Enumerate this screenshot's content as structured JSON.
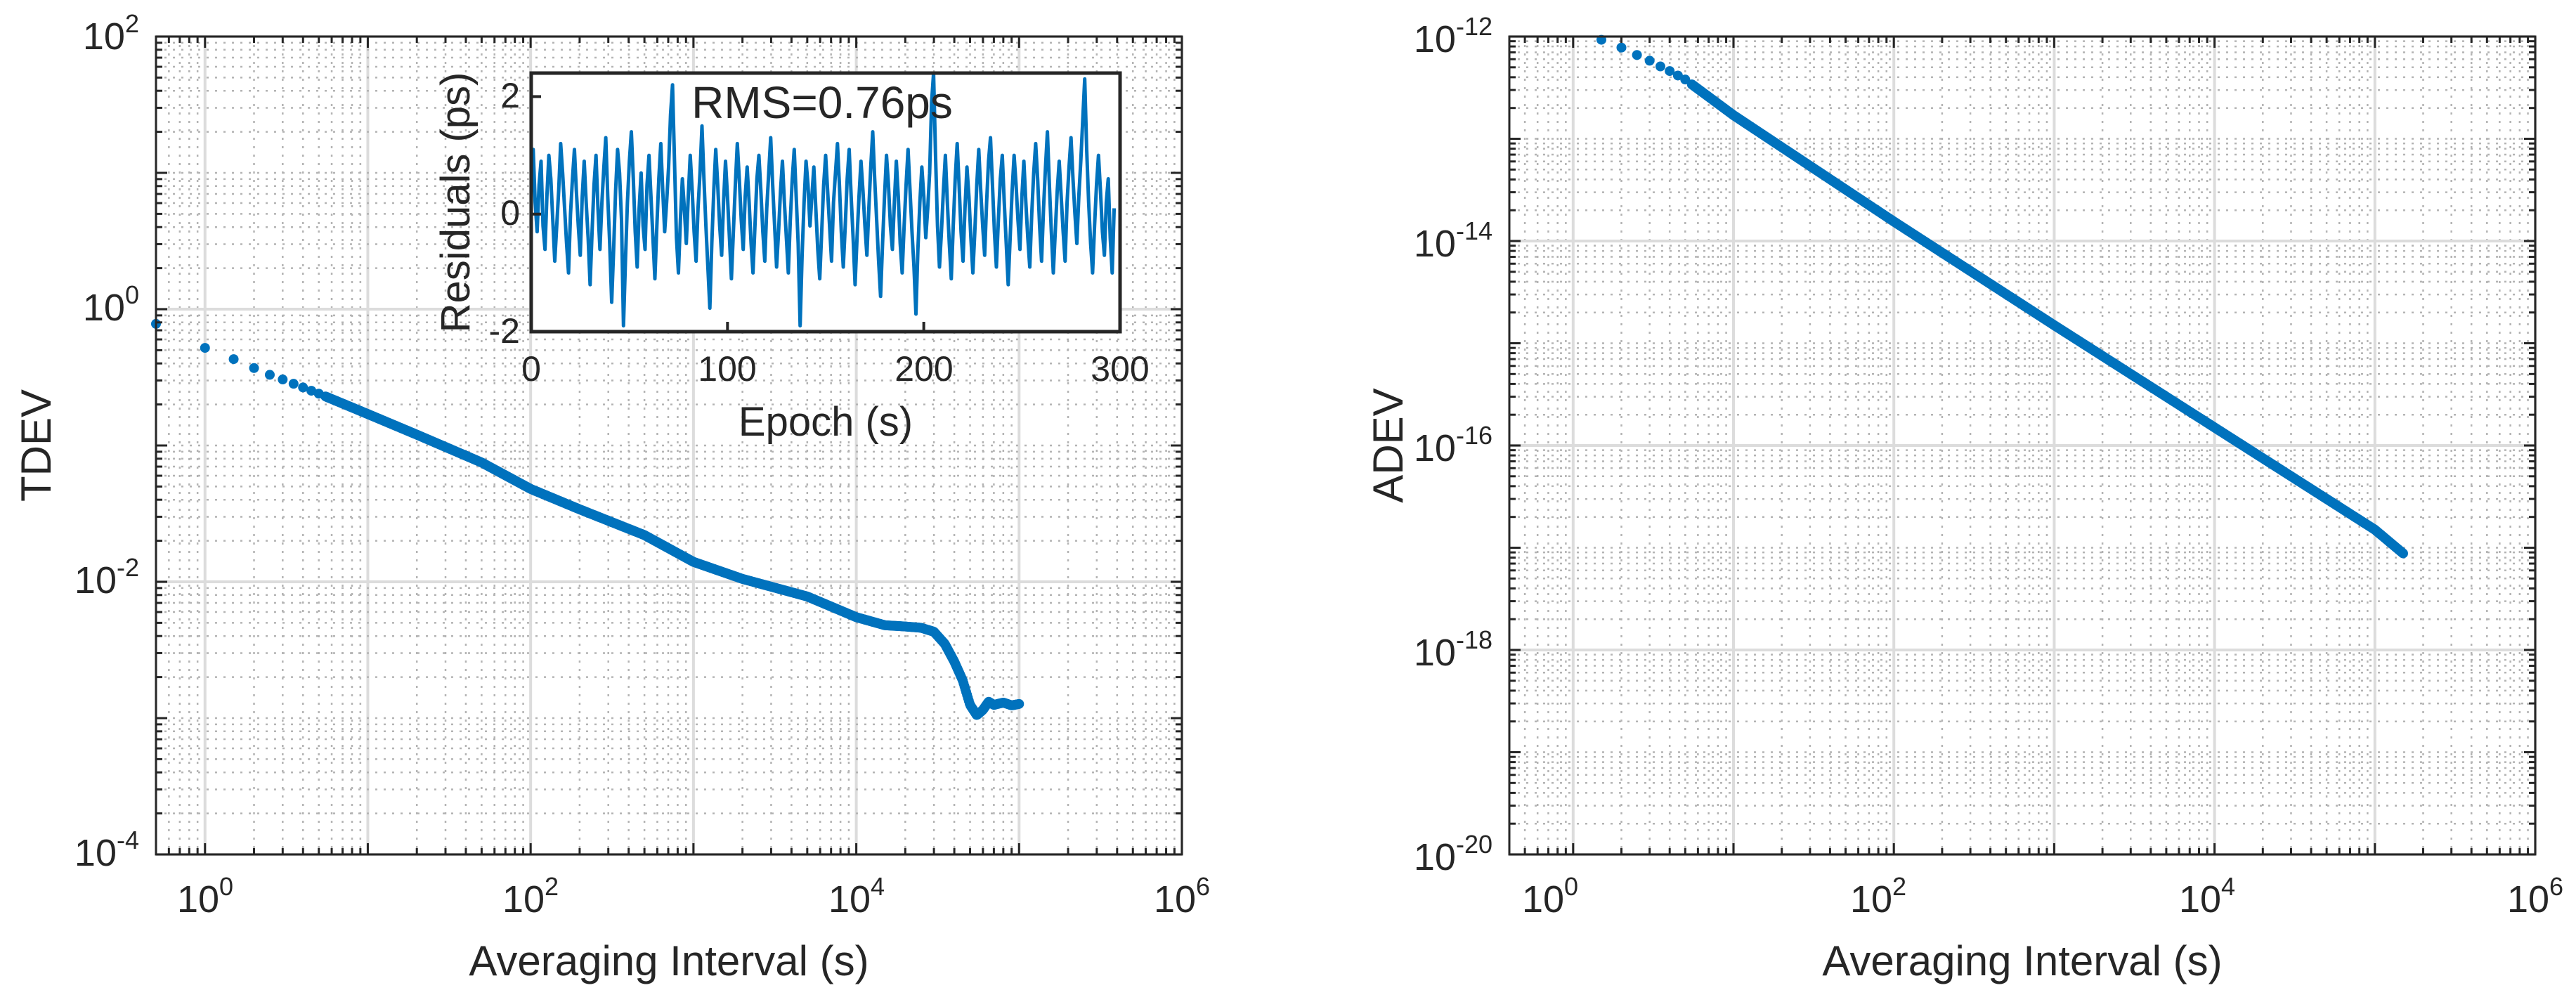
{
  "chart_data": [
    {
      "type": "scatter",
      "xscale": "log",
      "yscale": "log",
      "xlabel": "Averaging Interval (s)",
      "ylabel": "TDEV",
      "xlim": [
        0.5,
        1000000
      ],
      "ylim": [
        0.0001,
        100
      ],
      "grid": true,
      "minor_grid": true,
      "x_ticks": [
        {
          "base": "10",
          "exp": "0"
        },
        {
          "base": "10",
          "exp": "2"
        },
        {
          "base": "10",
          "exp": "4"
        },
        {
          "base": "10",
          "exp": "6"
        }
      ],
      "y_ticks": [
        {
          "base": "10",
          "exp": "-4"
        },
        {
          "base": "10",
          "exp": "-2"
        },
        {
          "base": "10",
          "exp": "0"
        },
        {
          "base": "10",
          "exp": "2"
        }
      ],
      "series": [
        {
          "name": "TDEV",
          "color": "#0072bd",
          "points": [
            [
              0.5,
              0.78
            ],
            [
              1,
              0.52
            ],
            [
              1.5,
              0.43
            ],
            [
              2,
              0.37
            ],
            [
              2.5,
              0.33
            ],
            [
              3,
              0.305
            ],
            [
              5,
              0.24
            ],
            [
              10,
              0.17
            ],
            [
              20,
              0.12
            ],
            [
              50,
              0.075
            ],
            [
              100,
              0.048
            ],
            [
              200,
              0.034
            ],
            [
              500,
              0.022
            ],
            [
              1000,
              0.014
            ],
            [
              2000,
              0.0105
            ],
            [
              5000,
              0.0078
            ],
            [
              10000,
              0.0055
            ],
            [
              15000,
              0.0048
            ],
            [
              20000,
              0.0047
            ],
            [
              25000,
              0.0046
            ],
            [
              30000,
              0.0043
            ],
            [
              35000,
              0.0035
            ],
            [
              40000,
              0.0026
            ],
            [
              45000,
              0.0019
            ],
            [
              50000,
              0.00125
            ],
            [
              55000,
              0.00105
            ],
            [
              60000,
              0.00115
            ],
            [
              65000,
              0.00132
            ],
            [
              70000,
              0.00125
            ],
            [
              80000,
              0.0013
            ],
            [
              90000,
              0.00124
            ],
            [
              100000,
              0.00127
            ]
          ]
        }
      ]
    },
    {
      "type": "line",
      "role": "inset",
      "xlabel": "Epoch (s)",
      "ylabel": "Residuals (ps)",
      "xlim": [
        0,
        300
      ],
      "ylim": [
        -2,
        2.4
      ],
      "x_ticks": [
        "0",
        "100",
        "200",
        "300"
      ],
      "y_ticks": [
        "-2",
        "0",
        "2"
      ],
      "annotation": "RMS=0.76ps",
      "series": [
        {
          "name": "Residuals",
          "color": "#0072bd",
          "x_start": 0,
          "x_step": 1,
          "values": [
            0.8,
            1.1,
            0.2,
            -0.3,
            0.5,
            0.9,
            -0.2,
            -0.6,
            0.3,
            1.0,
            0.6,
            -0.1,
            -0.8,
            -0.2,
            0.4,
            1.2,
            0.7,
            0.1,
            -0.5,
            -1.0,
            0.0,
            0.6,
            1.1,
            0.4,
            -0.2,
            -0.7,
            0.3,
            0.9,
            0.2,
            -0.4,
            -1.2,
            -0.3,
            0.5,
            1.0,
            0.1,
            -0.6,
            0.2,
            0.8,
            1.3,
            0.3,
            -0.5,
            -1.5,
            -0.6,
            0.4,
            1.1,
            0.7,
            -0.1,
            -1.9,
            -0.8,
            0.2,
            0.9,
            1.4,
            0.6,
            -0.3,
            -0.9,
            0.1,
            0.7,
            -0.2,
            -0.6,
            0.5,
            1.0,
            0.3,
            -0.4,
            -1.1,
            -0.2,
            0.6,
            1.2,
            0.4,
            -0.3,
            0.2,
            0.8,
            1.7,
            2.2,
            0.9,
            -0.4,
            -1.0,
            -0.1,
            0.6,
            0.1,
            -0.5,
            0.3,
            1.0,
            0.4,
            -0.3,
            -0.8,
            0.1,
            0.7,
            1.5,
            0.6,
            -0.2,
            -0.9,
            -1.6,
            -0.5,
            0.4,
            1.1,
            0.5,
            -0.2,
            -0.7,
            0.2,
            0.9,
            0.3,
            -0.4,
            -1.1,
            -0.3,
            0.5,
            1.2,
            0.6,
            -0.1,
            -0.6,
            0.3,
            0.8,
            0.2,
            -0.5,
            -1.0,
            -0.2,
            0.6,
            1.0,
            0.4,
            -0.3,
            -0.8,
            0.1,
            0.7,
            1.3,
            0.5,
            -0.2,
            -0.9,
            -0.3,
            0.4,
            0.9,
            0.2,
            -0.4,
            -1.0,
            -0.1,
            0.6,
            1.1,
            0.3,
            -0.5,
            -1.9,
            -0.7,
            0.2,
            0.9,
            0.5,
            -0.2,
            0.3,
            0.8,
            0.1,
            -0.6,
            -1.1,
            -0.3,
            0.5,
            1.0,
            0.4,
            -0.2,
            -0.8,
            0.2,
            0.7,
            1.2,
            0.5,
            -0.3,
            -0.9,
            -0.2,
            0.6,
            1.1,
            0.3,
            -0.4,
            -1.2,
            -0.4,
            0.3,
            0.9,
            0.4,
            -0.2,
            -0.7,
            0.1,
            0.8,
            1.4,
            0.6,
            -0.1,
            -0.8,
            -1.4,
            -0.5,
            0.3,
            1.0,
            0.5,
            -0.2,
            -0.6,
            0.2,
            0.9,
            0.3,
            -0.5,
            -1.0,
            -0.2,
            0.5,
            1.1,
            0.4,
            -0.3,
            -0.9,
            -1.7,
            -0.6,
            0.2,
            0.8,
            0.3,
            -0.4,
            0.1,
            0.7,
            1.9,
            2.4,
            1.0,
            -0.2,
            -0.9,
            -0.3,
            0.4,
            1.0,
            0.2,
            -0.5,
            -1.1,
            -0.2,
            0.6,
            1.2,
            0.5,
            -0.3,
            -0.8,
            0.1,
            0.8,
            0.3,
            -0.4,
            -1.0,
            -0.3,
            0.5,
            1.1,
            0.4,
            -0.2,
            -0.7,
            0.2,
            0.9,
            1.3,
            0.5,
            -0.3,
            -0.9,
            -0.1,
            0.6,
            1.0,
            0.2,
            -0.5,
            -1.2,
            -0.4,
            0.4,
            1.0,
            0.5,
            -0.1,
            -0.6,
            0.3,
            0.9,
            0.2,
            -0.4,
            -0.9,
            0.0,
            0.7,
            1.2,
            0.6,
            -0.2,
            -0.8,
            0.1,
            0.8,
            1.4,
            0.5,
            -0.3,
            -1.0,
            -0.3,
            0.4,
            0.9,
            0.3,
            -0.3,
            -0.8,
            0.2,
            0.8,
            1.3,
            0.6,
            0.0,
            -0.5,
            0.3,
            0.9,
            1.6,
            2.3,
            1.1,
            0.2,
            -0.5,
            -1.0,
            -0.2,
            0.5,
            1.0,
            0.4,
            -0.3,
            -0.7,
            0.2,
            0.6,
            -0.4,
            -1.0,
            0.1
          ]
        }
      ]
    },
    {
      "type": "scatter",
      "xscale": "log",
      "yscale": "log",
      "xlabel": "Averaging Interval (s)",
      "ylabel": "ADEV",
      "xlim": [
        0.4,
        1000000
      ],
      "ylim": [
        1e-20,
        1e-12
      ],
      "grid": true,
      "minor_grid": true,
      "x_ticks": [
        {
          "base": "10",
          "exp": "0"
        },
        {
          "base": "10",
          "exp": "2"
        },
        {
          "base": "10",
          "exp": "4"
        },
        {
          "base": "10",
          "exp": "6"
        }
      ],
      "y_ticks": [
        {
          "base": "10",
          "exp": "-20"
        },
        {
          "base": "10",
          "exp": "-18"
        },
        {
          "base": "10",
          "exp": "-16"
        },
        {
          "base": "10",
          "exp": "-14"
        },
        {
          "base": "10",
          "exp": "-12"
        }
      ],
      "series": [
        {
          "name": "ADEV",
          "color": "#0072bd",
          "points": [
            [
              1.5,
              9.3e-13
            ],
            [
              2,
              7.8e-13
            ],
            [
              2.5,
              6.6e-13
            ],
            [
              3,
              5.8e-13
            ],
            [
              3.5,
              5.1e-13
            ],
            [
              4,
              4.6e-13
            ],
            [
              5,
              3.8e-13
            ],
            [
              10,
              1.7e-13
            ],
            [
              100,
              1.55e-14
            ],
            [
              1000,
              1.5e-15
            ],
            [
              10000,
              1.5e-16
            ],
            [
              100000,
              1.5e-17
            ],
            [
              150000,
              8.8e-18
            ]
          ]
        }
      ]
    }
  ]
}
